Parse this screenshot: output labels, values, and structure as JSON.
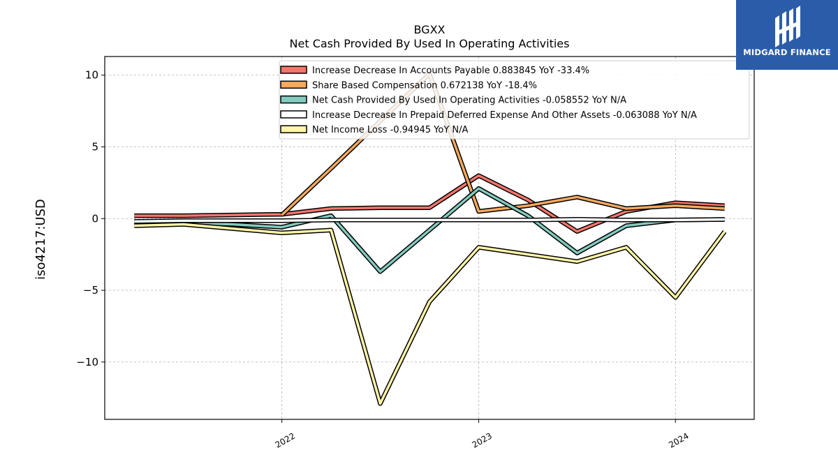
{
  "chart_data": {
    "type": "line",
    "title": "BGXX",
    "subtitle": "Net Cash Provided By Used In Operating Activities",
    "ylabel": "iso4217:USD",
    "xlabel": "",
    "ylim": [
      -14,
      11.3
    ],
    "xlim": [
      2021.1,
      2024.4
    ],
    "yticks": [
      10,
      5,
      0,
      -5,
      -10
    ],
    "ytick_labels": [
      "10",
      "5",
      "0",
      "−5",
      "−10"
    ],
    "xticks": [
      2022,
      2023,
      2024
    ],
    "xtick_labels": [
      "2022",
      "2023",
      "2024"
    ],
    "grid": true,
    "legend_position": "top-center",
    "series": [
      {
        "name": "Increase Decrease In Accounts Payable  0.883845 YoY -33.4%",
        "color": "#f4756b",
        "x": [
          2021.25,
          2021.5,
          2021.75,
          2022.0,
          2022.25,
          2022.5,
          2022.75,
          2023.0,
          2023.25,
          2023.5,
          2023.75,
          2024.0,
          2024.25
        ],
        "y": [
          0.2,
          0.2,
          0.25,
          0.3,
          0.7,
          0.75,
          0.75,
          3.0,
          1.3,
          -0.9,
          0.5,
          1.1,
          0.9
        ]
      },
      {
        "name": "Share Based Compensation  0.672138 YoY -18.4%",
        "color": "#f7a95e",
        "x": [
          2022.0,
          2022.25,
          2022.5,
          2022.75,
          2023.0,
          2023.25,
          2023.5,
          2023.75,
          2024.0,
          2024.25
        ],
        "y": [
          0.25,
          3.5,
          6.8,
          10.1,
          0.5,
          0.9,
          1.5,
          0.7,
          0.9,
          0.7
        ]
      },
      {
        "name": "Net Cash Provided By Used In Operating Activities  -0.058552 YoY N/A",
        "color": "#83cbbe",
        "x": [
          2021.25,
          2021.5,
          2021.75,
          2022.0,
          2022.25,
          2022.5,
          2022.75,
          2023.0,
          2023.25,
          2023.5,
          2023.75,
          2024.0,
          2024.25
        ],
        "y": [
          -0.2,
          -0.3,
          -0.4,
          -0.6,
          0.2,
          -3.7,
          -0.8,
          2.1,
          0.2,
          -2.4,
          -0.5,
          -0.1,
          -0.06
        ]
      },
      {
        "name": "Increase Decrease In Prepaid Deferred Expense And Other Assets  -0.063088 YoY N/A",
        "color": "#ffffff",
        "x": [
          2021.25,
          2021.5,
          2021.75,
          2022.0,
          2022.25,
          2022.5,
          2022.75,
          2023.0,
          2023.25,
          2023.5,
          2023.75,
          2024.0,
          2024.25
        ],
        "y": [
          -0.2,
          -0.15,
          -0.15,
          -0.15,
          -0.1,
          -0.1,
          -0.1,
          -0.1,
          -0.1,
          -0.05,
          -0.1,
          -0.1,
          -0.06
        ]
      },
      {
        "name": "Net Income Loss  -0.94945 YoY N/A",
        "color": "#fff5a8",
        "x": [
          2021.25,
          2021.5,
          2021.75,
          2022.0,
          2022.25,
          2022.5,
          2022.75,
          2023.0,
          2023.25,
          2023.5,
          2023.75,
          2024.0,
          2024.25
        ],
        "y": [
          -0.5,
          -0.4,
          -0.7,
          -1.0,
          -0.8,
          -12.9,
          -5.8,
          -2.0,
          -2.5,
          -3.0,
          -2.0,
          -5.5,
          -0.9
        ]
      }
    ]
  },
  "logo": {
    "text": "MIDGARD FINANCE",
    "bg_color": "#2a5caa"
  }
}
